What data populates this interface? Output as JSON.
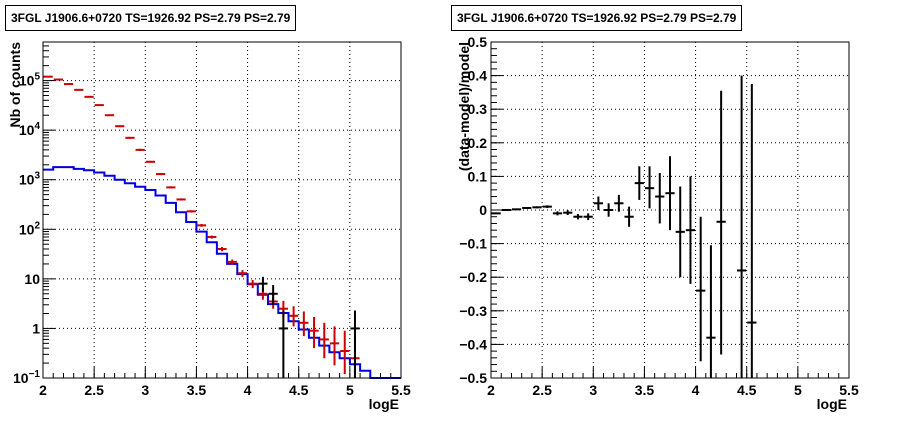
{
  "panels": {
    "left": {
      "title": "3FGL J1906.6+0720 TS=1926.92 PS=2.79 PS=2.79"
    },
    "right": {
      "title": "3FGL J1906.6+0720 TS=1926.92 PS=2.79 PS=2.79"
    }
  },
  "chart_data": [
    {
      "type": "line",
      "title": "3FGL J1906.6+0720 TS=1926.92 PS=2.79 PS=2.79",
      "xlabel": "logE",
      "ylabel": "Nb of counts",
      "xlim": [
        2,
        5.5
      ],
      "ylim": [
        0.1,
        600000
      ],
      "yscale": "log",
      "grid": true,
      "x_ticks": [
        "2",
        "2.5",
        "3",
        "3.5",
        "4",
        "4.5",
        "5",
        "5.5"
      ],
      "y_ticks": [
        "10^-1",
        "1",
        "10",
        "10^2",
        "10^3",
        "10^4",
        "10^5"
      ],
      "y_tick_values": [
        0.1,
        1,
        10,
        100,
        1000,
        10000,
        100000
      ],
      "bin_edges": [
        2.0,
        2.1,
        2.2,
        2.3,
        2.4,
        2.5,
        2.6,
        2.7,
        2.8,
        2.9,
        3.0,
        3.1,
        3.2,
        3.3,
        3.4,
        3.5,
        3.6,
        3.7,
        3.8,
        3.9,
        4.0,
        4.1,
        4.2,
        4.3,
        4.4,
        4.5,
        4.6,
        4.7,
        4.8,
        4.9,
        5.0,
        5.1,
        5.2,
        5.3,
        5.4,
        5.5
      ],
      "series": [
        {
          "color": "#cc0000",
          "kind": "points",
          "x": [
            2.05,
            2.15,
            2.25,
            2.35,
            2.45,
            2.55,
            2.65,
            2.75,
            2.85,
            2.95,
            3.05,
            3.15,
            3.25,
            3.35,
            3.45,
            3.55,
            3.65,
            3.75,
            3.85,
            3.95,
            4.05,
            4.15,
            4.25,
            4.35,
            4.45,
            4.55,
            4.65,
            4.75,
            4.85,
            4.95,
            5.05
          ],
          "values": [
            120000,
            105000,
            85000,
            65000,
            47000,
            32000,
            20000,
            12000,
            7000,
            4000,
            2300,
            1300,
            700,
            400,
            230,
            120,
            70,
            40,
            22,
            13,
            8,
            5,
            3.5,
            2.5,
            1.8,
            1.3,
            0.9,
            0.6,
            0.5,
            0.35,
            0.25
          ],
          "err_low": [
            117000,
            102000,
            82500,
            63000,
            45500,
            31000,
            19300,
            11500,
            6700,
            3800,
            2200,
            1240,
            665,
            380,
            218,
            112,
            65,
            36,
            19.5,
            11,
            6.5,
            3.8,
            2.5,
            1.7,
            1.1,
            0.7,
            0.4,
            0.25,
            0.18,
            0.12,
            0.1
          ],
          "err_high": [
            123000,
            108000,
            87500,
            67000,
            48500,
            33000,
            20700,
            12500,
            7300,
            4200,
            2400,
            1360,
            735,
            420,
            242,
            128,
            75,
            44,
            24.5,
            15,
            9.5,
            6.4,
            4.8,
            3.6,
            2.8,
            2.2,
            1.7,
            1.3,
            1.1,
            0.9,
            0.7
          ]
        },
        {
          "color": "#000000",
          "kind": "points",
          "x": [
            4.15,
            4.25,
            4.35,
            5.05
          ],
          "values": [
            8,
            5,
            1,
            1
          ],
          "err_low": [
            5.5,
            3,
            0.1,
            0.1
          ],
          "err_high": [
            11,
            7.5,
            2.3,
            2.3
          ]
        },
        {
          "color": "#0000dd",
          "kind": "step",
          "values": [
            1600,
            1800,
            1800,
            1650,
            1550,
            1400,
            1200,
            1000,
            850,
            720,
            620,
            480,
            340,
            220,
            140,
            90,
            55,
            32,
            20,
            12.5,
            7.8,
            4.8,
            3.1,
            2.05,
            1.4,
            0.95,
            0.65,
            0.45,
            0.33,
            0.25,
            0.19,
            0.14,
            0.1,
            0.1,
            0.1
          ]
        }
      ]
    },
    {
      "type": "scatter",
      "title": "3FGL J1906.6+0720 TS=1926.92 PS=2.79 PS=2.79",
      "xlabel": "logE",
      "ylabel": "(data-model)/model",
      "xlim": [
        2,
        5.5
      ],
      "ylim": [
        -0.5,
        0.5
      ],
      "grid": true,
      "x_ticks": [
        "2",
        "2.5",
        "3",
        "3.5",
        "4",
        "4.5",
        "5",
        "5.5"
      ],
      "y_ticks": [
        "−0.5",
        "−0.4",
        "−0.3",
        "−0.2",
        "−0.1",
        "0",
        "0.1",
        "0.2",
        "0.3",
        "0.4",
        "0.5"
      ],
      "series": [
        {
          "color": "#000000",
          "x": [
            2.05,
            2.15,
            2.25,
            2.35,
            2.45,
            2.55,
            2.65,
            2.75,
            2.85,
            2.95,
            3.05,
            3.15,
            3.25,
            3.35,
            3.45,
            3.55,
            3.65,
            3.75,
            3.85,
            3.95,
            4.05,
            4.15,
            4.25,
            4.45,
            4.55
          ],
          "values": [
            -0.01,
            0.0,
            0.002,
            0.006,
            0.008,
            0.01,
            -0.01,
            -0.008,
            -0.02,
            -0.02,
            0.02,
            0.0,
            0.02,
            -0.02,
            0.08,
            0.065,
            0.04,
            0.05,
            -0.065,
            -0.06,
            -0.24,
            -0.38,
            -0.035,
            -0.18,
            -0.335
          ],
          "err_low": [
            -0.012,
            -0.002,
            0.0,
            0.004,
            0.005,
            0.006,
            -0.016,
            -0.015,
            -0.028,
            -0.03,
            0.0,
            -0.02,
            -0.005,
            -0.05,
            0.03,
            0.005,
            -0.04,
            -0.06,
            -0.2,
            -0.22,
            -0.45,
            -0.5,
            -0.43,
            -0.5,
            -0.5
          ],
          "err_high": [
            -0.008,
            0.002,
            0.004,
            0.008,
            0.011,
            0.014,
            -0.004,
            -0.001,
            -0.012,
            -0.01,
            0.04,
            0.02,
            0.045,
            0.01,
            0.13,
            0.13,
            0.11,
            0.16,
            0.07,
            0.1,
            -0.02,
            -0.105,
            0.355,
            0.4,
            0.375
          ]
        }
      ]
    }
  ]
}
